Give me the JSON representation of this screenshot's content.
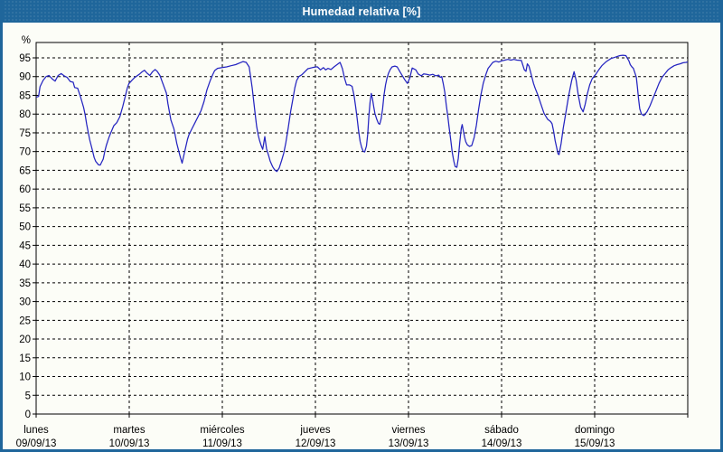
{
  "titlebar": {
    "title": "Humedad relativa [%]"
  },
  "colors": {
    "titlebar_bg": "#1f669b",
    "window_border": "#1f669b",
    "content_bg": "#fcfdf7",
    "axis_and_grid": "#000000",
    "line": "#2424c0",
    "title_text": "#ffffff",
    "label_text": "#000000"
  },
  "chart_data": {
    "type": "line",
    "title": "Humedad relativa [%]",
    "xlabel": "",
    "ylabel": "%",
    "ylim": [
      0,
      99
    ],
    "yticks": [
      0,
      5,
      10,
      15,
      20,
      25,
      30,
      35,
      40,
      45,
      50,
      55,
      60,
      65,
      70,
      75,
      80,
      85,
      90,
      95
    ],
    "grid": "dashed horizontal and vertical",
    "legend": "none",
    "x_unit": "days (ticks at each day start, 7 days total)",
    "x_categories": [
      {
        "day": "lunes",
        "date": "09/09/13"
      },
      {
        "day": "martes",
        "date": "10/09/13"
      },
      {
        "day": "miércoles",
        "date": "11/09/13"
      },
      {
        "day": "jueves",
        "date": "12/09/13"
      },
      {
        "day": "viernes",
        "date": "13/09/13"
      },
      {
        "day": "sábado",
        "date": "14/09/13"
      },
      {
        "day": "domingo",
        "date": "15/09/13"
      }
    ],
    "series": [
      {
        "name": "Humedad relativa [%]",
        "slug": "humidity-line",
        "color": "#2424c0",
        "points": [
          [
            0.0,
            84.5
          ],
          [
            0.026,
            84.7
          ],
          [
            0.042,
            87.3
          ],
          [
            0.075,
            89.0
          ],
          [
            0.107,
            90.0
          ],
          [
            0.139,
            90.3
          ],
          [
            0.172,
            89.4
          ],
          [
            0.204,
            88.8
          ],
          [
            0.236,
            90.3
          ],
          [
            0.269,
            90.8
          ],
          [
            0.301,
            90.2
          ],
          [
            0.333,
            89.8
          ],
          [
            0.366,
            88.7
          ],
          [
            0.398,
            88.5
          ],
          [
            0.414,
            87.1
          ],
          [
            0.446,
            86.9
          ],
          [
            0.478,
            84.5
          ],
          [
            0.511,
            81.7
          ],
          [
            0.527,
            79.7
          ],
          [
            0.543,
            77.3
          ],
          [
            0.559,
            75.2
          ],
          [
            0.575,
            73.2
          ],
          [
            0.591,
            71.6
          ],
          [
            0.608,
            70.0
          ],
          [
            0.623,
            68.4
          ],
          [
            0.64,
            67.4
          ],
          [
            0.669,
            66.5
          ],
          [
            0.688,
            66.4
          ],
          [
            0.72,
            68.0
          ],
          [
            0.737,
            70.0
          ],
          [
            0.753,
            71.6
          ],
          [
            0.769,
            72.8
          ],
          [
            0.785,
            74.0
          ],
          [
            0.802,
            75.0
          ],
          [
            0.834,
            76.9
          ],
          [
            0.866,
            77.7
          ],
          [
            0.899,
            79.3
          ],
          [
            0.931,
            82.1
          ],
          [
            0.963,
            85.3
          ],
          [
            0.979,
            86.9
          ],
          [
            0.996,
            88.1
          ],
          [
            1.028,
            89.0
          ],
          [
            1.06,
            89.8
          ],
          [
            1.108,
            90.6
          ],
          [
            1.134,
            91.2
          ],
          [
            1.163,
            91.7
          ],
          [
            1.192,
            90.9
          ],
          [
            1.221,
            90.3
          ],
          [
            1.25,
            91.3
          ],
          [
            1.279,
            91.9
          ],
          [
            1.3,
            91.4
          ],
          [
            1.33,
            90.3
          ],
          [
            1.351,
            88.8
          ],
          [
            1.399,
            85.6
          ],
          [
            1.416,
            82.8
          ],
          [
            1.448,
            78.4
          ],
          [
            1.48,
            76.1
          ],
          [
            1.512,
            72.1
          ],
          [
            1.545,
            68.9
          ],
          [
            1.568,
            66.9
          ],
          [
            1.593,
            69.7
          ],
          [
            1.626,
            73.3
          ],
          [
            1.642,
            74.5
          ],
          [
            1.674,
            76.1
          ],
          [
            1.707,
            77.7
          ],
          [
            1.739,
            79.3
          ],
          [
            1.771,
            80.9
          ],
          [
            1.803,
            83.3
          ],
          [
            1.835,
            86.5
          ],
          [
            1.868,
            88.8
          ],
          [
            1.894,
            90.4
          ],
          [
            1.917,
            91.6
          ],
          [
            1.949,
            92.2
          ],
          [
            1.997,
            92.4
          ],
          [
            2.046,
            92.6
          ],
          [
            2.094,
            92.9
          ],
          [
            2.143,
            93.2
          ],
          [
            2.191,
            93.7
          ],
          [
            2.223,
            94.0
          ],
          [
            2.256,
            93.8
          ],
          [
            2.288,
            92.6
          ],
          [
            2.305,
            89.8
          ],
          [
            2.32,
            87.1
          ],
          [
            2.337,
            83.5
          ],
          [
            2.353,
            79.9
          ],
          [
            2.369,
            76.7
          ],
          [
            2.385,
            74.4
          ],
          [
            2.402,
            72.8
          ],
          [
            2.417,
            71.6
          ],
          [
            2.434,
            70.6
          ],
          [
            2.456,
            74.0
          ],
          [
            2.475,
            70.8
          ],
          [
            2.499,
            68.8
          ],
          [
            2.514,
            67.5
          ],
          [
            2.54,
            66.0
          ],
          [
            2.563,
            65.1
          ],
          [
            2.586,
            64.7
          ],
          [
            2.611,
            65.6
          ],
          [
            2.637,
            67.6
          ],
          [
            2.66,
            69.6
          ],
          [
            2.683,
            72.4
          ],
          [
            2.708,
            76.3
          ],
          [
            2.734,
            80.7
          ],
          [
            2.757,
            83.9
          ],
          [
            2.78,
            87.1
          ],
          [
            2.799,
            89.0
          ],
          [
            2.822,
            90.0
          ],
          [
            2.854,
            90.5
          ],
          [
            2.887,
            91.3
          ],
          [
            2.919,
            92.1
          ],
          [
            2.967,
            92.4
          ],
          [
            3.006,
            92.6
          ],
          [
            3.022,
            92.6
          ],
          [
            3.054,
            91.8
          ],
          [
            3.086,
            92.4
          ],
          [
            3.11,
            91.8
          ],
          [
            3.135,
            92.2
          ],
          [
            3.167,
            91.9
          ],
          [
            3.2,
            92.6
          ],
          [
            3.232,
            93.2
          ],
          [
            3.265,
            93.8
          ],
          [
            3.29,
            92.1
          ],
          [
            3.313,
            89.6
          ],
          [
            3.335,
            87.8
          ],
          [
            3.367,
            87.8
          ],
          [
            3.394,
            87.4
          ],
          [
            3.416,
            84.9
          ],
          [
            3.432,
            82.0
          ],
          [
            3.449,
            78.8
          ],
          [
            3.464,
            75.5
          ],
          [
            3.481,
            72.7
          ],
          [
            3.497,
            71.1
          ],
          [
            3.513,
            70.1
          ],
          [
            3.529,
            69.9
          ],
          [
            3.549,
            71.5
          ],
          [
            3.562,
            74.7
          ],
          [
            3.575,
            79.6
          ],
          [
            3.587,
            83.2
          ],
          [
            3.6,
            85.5
          ],
          [
            3.614,
            84.0
          ],
          [
            3.626,
            82.0
          ],
          [
            3.639,
            80.2
          ],
          [
            3.659,
            78.6
          ],
          [
            3.678,
            77.5
          ],
          [
            3.691,
            77.3
          ],
          [
            3.707,
            78.8
          ],
          [
            3.721,
            81.3
          ],
          [
            3.736,
            84.9
          ],
          [
            3.753,
            87.8
          ],
          [
            3.769,
            89.6
          ],
          [
            3.785,
            90.9
          ],
          [
            3.804,
            91.9
          ],
          [
            3.823,
            92.6
          ],
          [
            3.853,
            92.8
          ],
          [
            3.879,
            92.6
          ],
          [
            3.911,
            91.2
          ],
          [
            3.937,
            90.1
          ],
          [
            3.959,
            89.2
          ],
          [
            3.988,
            88.2
          ],
          [
            4.014,
            89.6
          ],
          [
            4.04,
            92.3
          ],
          [
            4.079,
            91.8
          ],
          [
            4.104,
            90.7
          ],
          [
            4.137,
            90.2
          ],
          [
            4.163,
            90.7
          ],
          [
            4.196,
            90.6
          ],
          [
            4.228,
            90.4
          ],
          [
            4.26,
            90.6
          ],
          [
            4.293,
            90.2
          ],
          [
            4.325,
            90.4
          ],
          [
            4.341,
            89.8
          ],
          [
            4.357,
            90.0
          ],
          [
            4.373,
            88.2
          ],
          [
            4.39,
            85.8
          ],
          [
            4.405,
            82.6
          ],
          [
            4.422,
            79.4
          ],
          [
            4.438,
            76.2
          ],
          [
            4.454,
            73.0
          ],
          [
            4.47,
            69.8
          ],
          [
            4.487,
            67.4
          ],
          [
            4.502,
            66.0
          ],
          [
            4.519,
            65.8
          ],
          [
            4.535,
            68.2
          ],
          [
            4.551,
            72.6
          ],
          [
            4.567,
            76.2
          ],
          [
            4.577,
            77.2
          ],
          [
            4.59,
            75.4
          ],
          [
            4.603,
            73.8
          ],
          [
            4.616,
            72.6
          ],
          [
            4.632,
            71.8
          ],
          [
            4.654,
            71.4
          ],
          [
            4.68,
            71.6
          ],
          [
            4.706,
            73.8
          ],
          [
            4.729,
            77.0
          ],
          [
            4.751,
            81.0
          ],
          [
            4.777,
            85.0
          ],
          [
            4.803,
            88.2
          ],
          [
            4.832,
            90.6
          ],
          [
            4.855,
            92.2
          ],
          [
            4.906,
            93.8
          ],
          [
            4.938,
            94.1
          ],
          [
            4.971,
            93.9
          ],
          [
            5.003,
            94.2
          ],
          [
            5.035,
            94.4
          ],
          [
            5.068,
            94.6
          ],
          [
            5.1,
            94.4
          ],
          [
            5.132,
            94.6
          ],
          [
            5.165,
            94.4
          ],
          [
            5.213,
            94.3
          ],
          [
            5.229,
            93.0
          ],
          [
            5.245,
            91.8
          ],
          [
            5.262,
            91.4
          ],
          [
            5.277,
            93.4
          ],
          [
            5.294,
            92.8
          ],
          [
            5.31,
            91.4
          ],
          [
            5.326,
            89.8
          ],
          [
            5.343,
            88.2
          ],
          [
            5.359,
            87.0
          ],
          [
            5.391,
            85.0
          ],
          [
            5.423,
            82.6
          ],
          [
            5.44,
            81.4
          ],
          [
            5.456,
            80.2
          ],
          [
            5.495,
            78.6
          ],
          [
            5.527,
            78.0
          ],
          [
            5.543,
            77.4
          ],
          [
            5.559,
            75.4
          ],
          [
            5.575,
            73.0
          ],
          [
            5.592,
            71.0
          ],
          [
            5.607,
            69.4
          ],
          [
            5.617,
            69.2
          ],
          [
            5.64,
            72.2
          ],
          [
            5.662,
            76.2
          ],
          [
            5.689,
            80.2
          ],
          [
            5.721,
            85.0
          ],
          [
            5.753,
            89.0
          ],
          [
            5.779,
            91.3
          ],
          [
            5.801,
            89.0
          ],
          [
            5.824,
            85.0
          ],
          [
            5.85,
            81.8
          ],
          [
            5.876,
            80.6
          ],
          [
            5.898,
            82.6
          ],
          [
            5.921,
            85.4
          ],
          [
            5.947,
            87.8
          ],
          [
            5.973,
            89.4
          ],
          [
            6.012,
            90.6
          ],
          [
            6.044,
            91.8
          ],
          [
            6.077,
            92.9
          ],
          [
            6.125,
            94.0
          ],
          [
            6.174,
            94.8
          ],
          [
            6.222,
            95.2
          ],
          [
            6.271,
            95.6
          ],
          [
            6.303,
            95.7
          ],
          [
            6.335,
            95.6
          ],
          [
            6.368,
            94.2
          ],
          [
            6.383,
            93.2
          ],
          [
            6.4,
            92.6
          ],
          [
            6.416,
            92.2
          ],
          [
            6.432,
            91.0
          ],
          [
            6.448,
            89.8
          ],
          [
            6.458,
            87.4
          ],
          [
            6.471,
            84.2
          ],
          [
            6.484,
            81.4
          ],
          [
            6.503,
            80.0
          ],
          [
            6.529,
            79.6
          ],
          [
            6.562,
            80.6
          ],
          [
            6.594,
            82.2
          ],
          [
            6.626,
            84.2
          ],
          [
            6.659,
            86.2
          ],
          [
            6.691,
            88.2
          ],
          [
            6.723,
            89.8
          ],
          [
            6.756,
            90.8
          ],
          [
            6.788,
            91.8
          ],
          [
            6.82,
            92.4
          ],
          [
            6.853,
            92.9
          ],
          [
            6.885,
            93.2
          ],
          [
            6.917,
            93.4
          ],
          [
            6.95,
            93.7
          ],
          [
            6.982,
            93.8
          ],
          [
            7.0,
            93.9
          ]
        ]
      }
    ]
  }
}
